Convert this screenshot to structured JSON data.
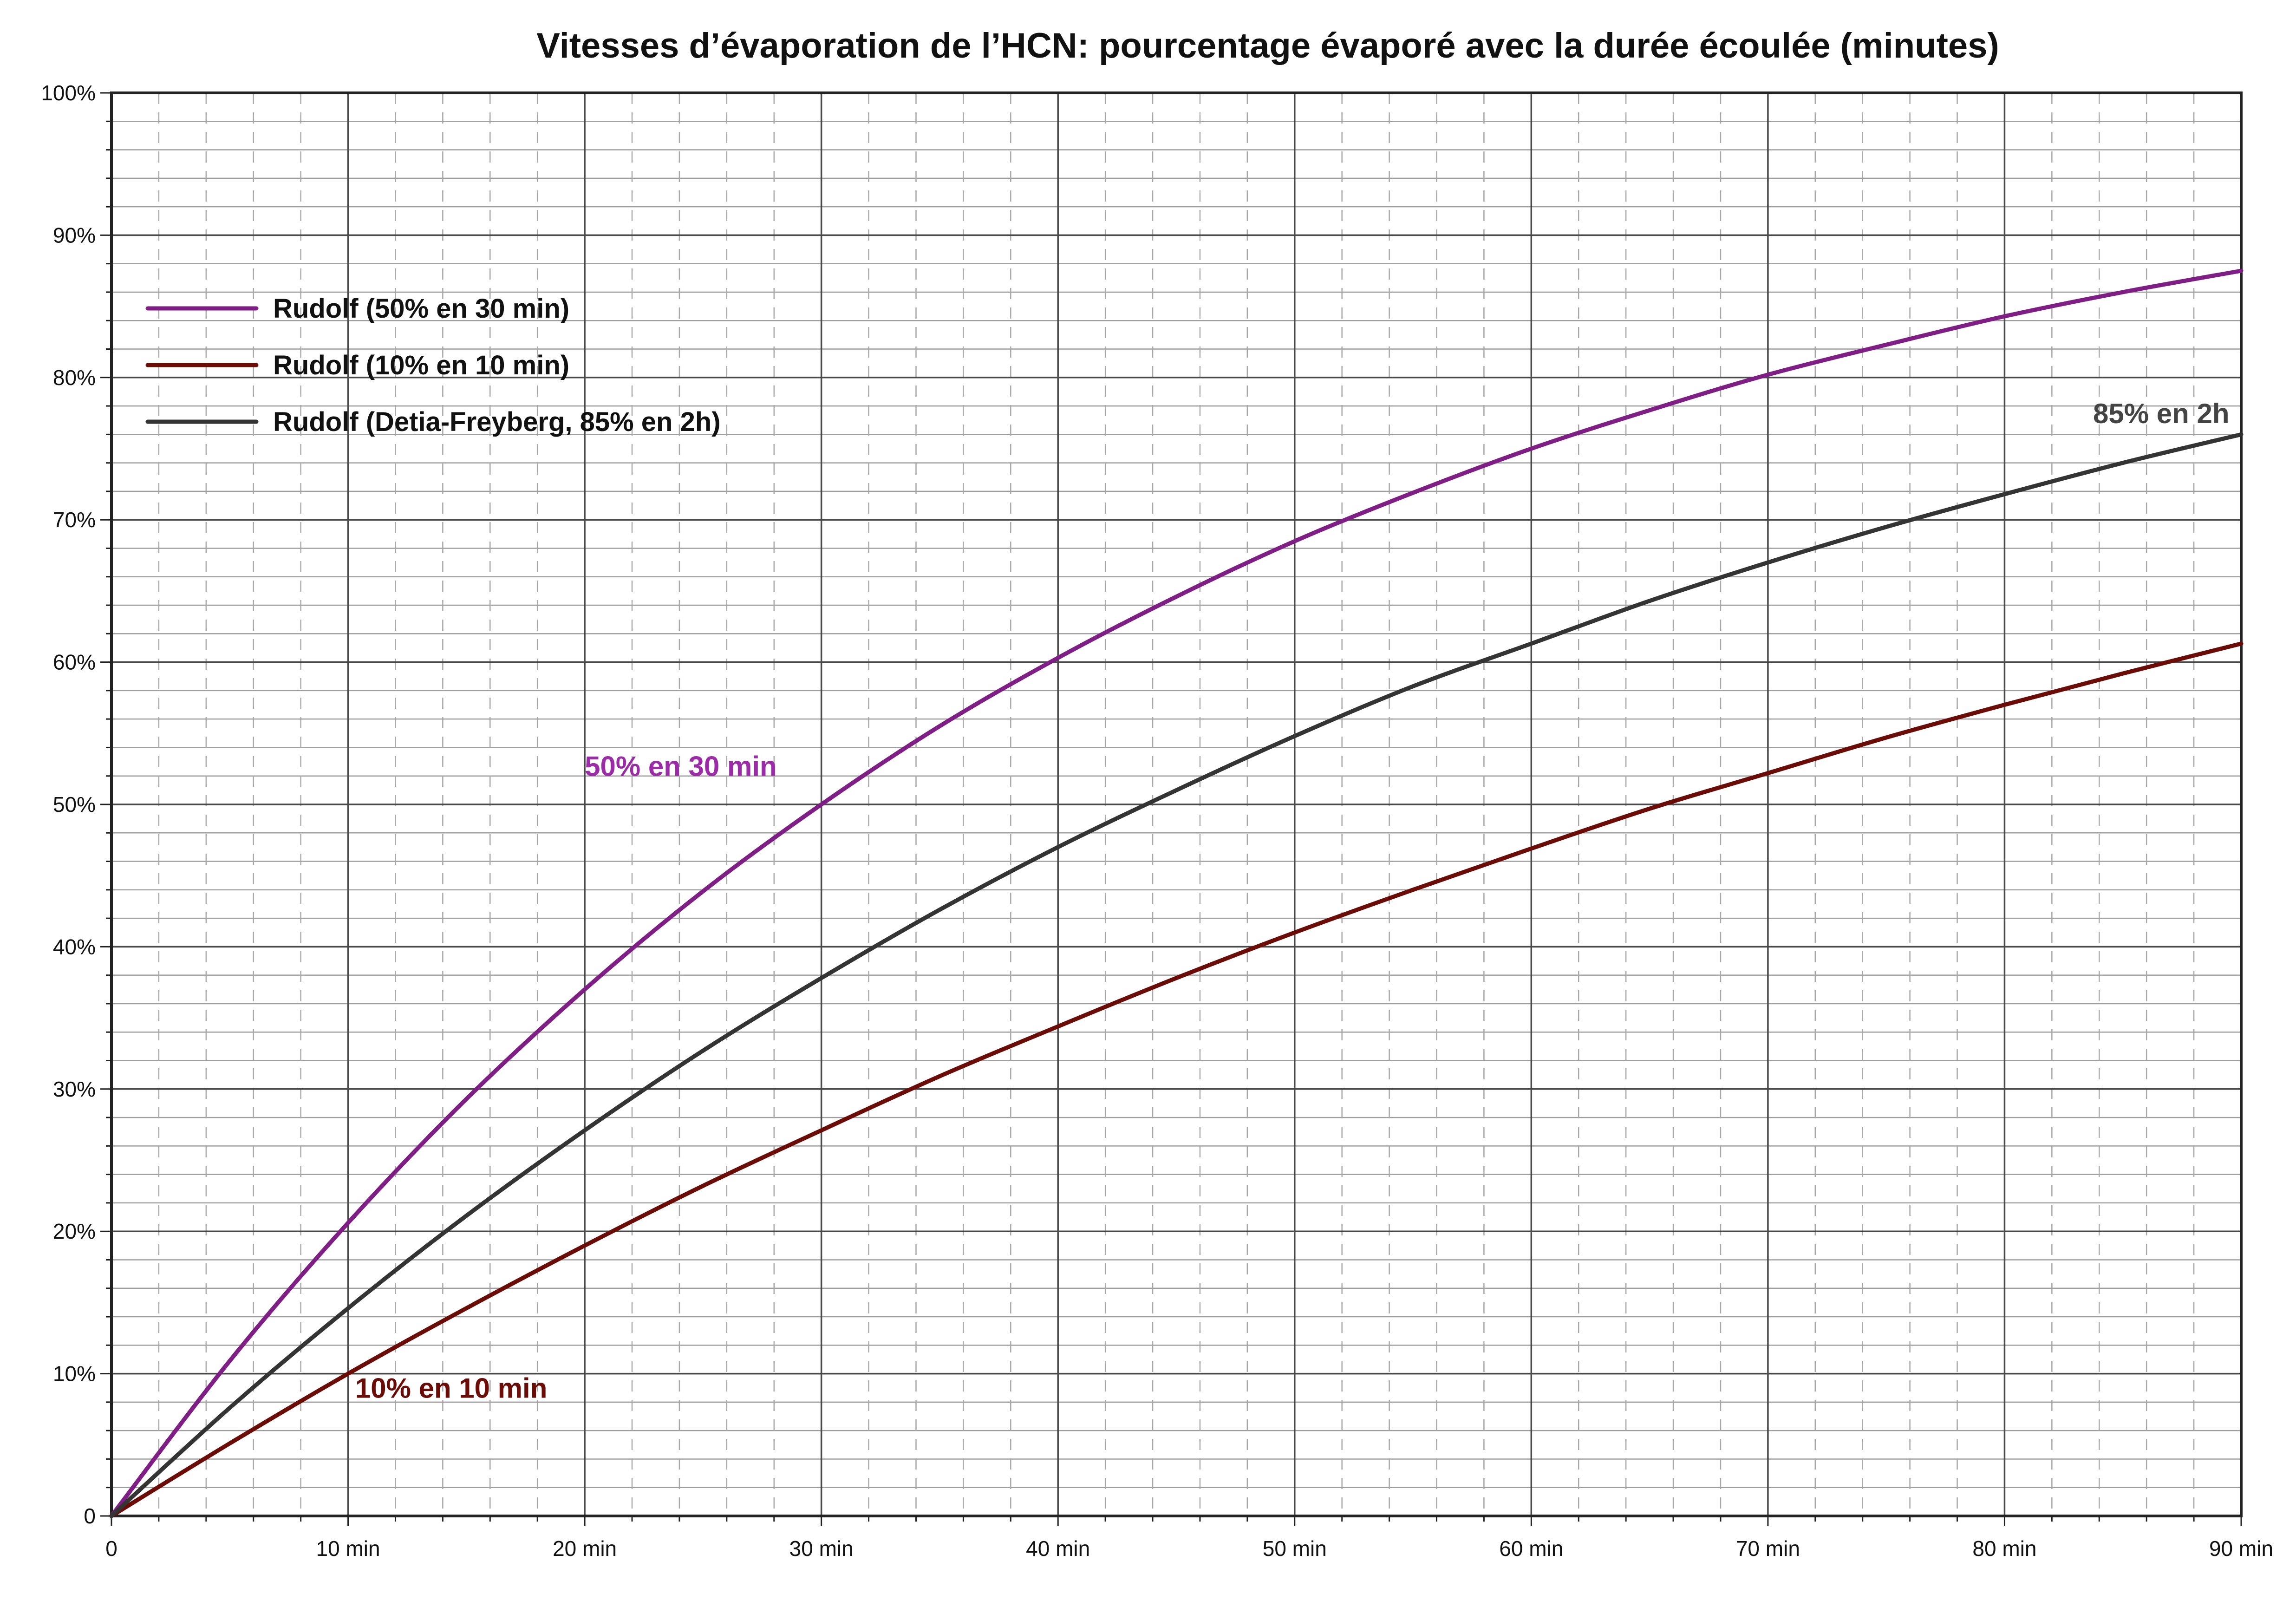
{
  "chart_data": {
    "type": "line",
    "title": "Vitesses d’évaporation de l’HCN: pourcentage évaporé avec la durée écoulée (minutes)",
    "xlabel": "",
    "ylabel": "",
    "xlim": [
      0,
      90
    ],
    "ylim": [
      0,
      100
    ],
    "grid": true,
    "legend_position": "top-left",
    "x_ticks": [
      {
        "value": 0,
        "label": "0"
      },
      {
        "value": 10,
        "label": "10 min"
      },
      {
        "value": 20,
        "label": "20 min"
      },
      {
        "value": 30,
        "label": "30 min"
      },
      {
        "value": 40,
        "label": "40 min"
      },
      {
        "value": 50,
        "label": "50 min"
      },
      {
        "value": 60,
        "label": "60 min"
      },
      {
        "value": 70,
        "label": "70 min"
      },
      {
        "value": 80,
        "label": "80 min"
      },
      {
        "value": 90,
        "label": "90 min"
      }
    ],
    "y_ticks": [
      {
        "value": 0,
        "label": "0"
      },
      {
        "value": 10,
        "label": "10%"
      },
      {
        "value": 20,
        "label": "20%"
      },
      {
        "value": 30,
        "label": "30%"
      },
      {
        "value": 40,
        "label": "40%"
      },
      {
        "value": 50,
        "label": "50%"
      },
      {
        "value": 60,
        "label": "60%"
      },
      {
        "value": 70,
        "label": "70%"
      },
      {
        "value": 80,
        "label": "80%"
      },
      {
        "value": 90,
        "label": "90%"
      },
      {
        "value": 100,
        "label": "100%"
      }
    ],
    "x": [
      0,
      5,
      10,
      15,
      20,
      25,
      30,
      35,
      40,
      45,
      50,
      55,
      60,
      65,
      70,
      75,
      80,
      85,
      90
    ],
    "series": [
      {
        "name": "Rudolf (50% en 30 min)",
        "color": "#7f1f86",
        "values": [
          0,
          10.9,
          20.6,
          29.3,
          37.0,
          43.9,
          50.0,
          55.5,
          60.3,
          64.6,
          68.5,
          71.9,
          75.0,
          77.7,
          80.2,
          82.3,
          84.3,
          86.0,
          87.5
        ]
      },
      {
        "name": "Rudolf (10% en 10 min)",
        "color": "#6b0c06",
        "values": [
          0,
          5.1,
          10.0,
          14.6,
          19.0,
          23.2,
          27.1,
          30.9,
          34.4,
          37.8,
          41.0,
          44.0,
          46.9,
          49.7,
          52.2,
          54.7,
          57.0,
          59.2,
          61.3
        ]
      },
      {
        "name": "Rudolf (Detia-Freyberg, 85% en 2h)",
        "color": "#343434",
        "values": [
          0,
          7.6,
          14.6,
          21.1,
          27.1,
          32.7,
          37.8,
          42.6,
          47.0,
          51.0,
          54.8,
          58.3,
          61.3,
          64.3,
          67.0,
          69.5,
          71.8,
          74.0,
          76.0
        ]
      }
    ],
    "annotations": [
      {
        "text": "50% en 30 min",
        "x": 20,
        "y": 52,
        "color": "#9b2ba6"
      },
      {
        "text": "10% en 10 min",
        "x": 10.3,
        "y": 8.3,
        "color": "#6b0c06"
      },
      {
        "text": "85% en 2h",
        "x": 89.5,
        "y": 76.8,
        "color": "#444444"
      }
    ]
  }
}
